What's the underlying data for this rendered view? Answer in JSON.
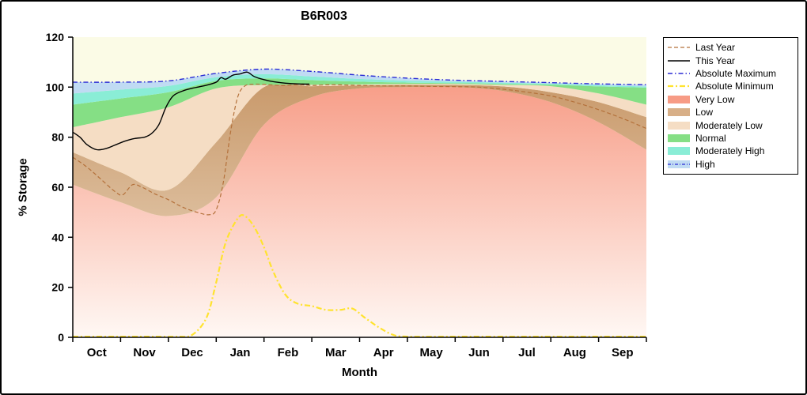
{
  "chart_data": {
    "type": "area",
    "title": "B6R003",
    "xlabel": "Month",
    "ylabel": "% Storage",
    "ylim": [
      0,
      120
    ],
    "y_ticks": [
      0,
      20,
      40,
      60,
      80,
      100,
      120
    ],
    "x_tick_labels": [
      "Oct",
      "Nov",
      "Dec",
      "Jan",
      "Feb",
      "Mar",
      "Apr",
      "May",
      "Jun",
      "Jul",
      "Aug",
      "Sep"
    ],
    "plot_bg": "#FBFBE6",
    "band_x": [
      0,
      1,
      2,
      3,
      4,
      5,
      6,
      7,
      8,
      9,
      10,
      11,
      12
    ],
    "bands": [
      {
        "name": "Very Low",
        "color": "#F79B85",
        "gradient_to": "#FFF8F4",
        "top": [
          61,
          54,
          48.5,
          56,
          85,
          96,
          99.5,
          100,
          100,
          98.5,
          94,
          86,
          75
        ]
      },
      {
        "name": "Low",
        "color": "#C89869",
        "gradient_to": "#EDDCC6",
        "top": [
          74,
          66,
          59,
          78,
          100,
          100.4,
          100.7,
          100.9,
          100.9,
          100.3,
          98,
          94,
          88
        ]
      },
      {
        "name": "Moderately Low",
        "color": "#F5DDC4",
        "top": [
          84,
          88,
          92,
          99.5,
          100.9,
          101,
          101.1,
          101.3,
          101.3,
          100.9,
          100.4,
          97.5,
          93
        ]
      },
      {
        "name": "Normal",
        "color": "#85DF85",
        "top": [
          93,
          95.5,
          98,
          102.5,
          103.5,
          102.8,
          102.2,
          101.8,
          101.6,
          101.3,
          101,
          100.3,
          99.8
        ]
      },
      {
        "name": "Moderately High",
        "color": "#8AEDD6",
        "top": [
          97.5,
          99,
          100.5,
          104,
          105.2,
          104.3,
          103.3,
          102.6,
          102.2,
          101.8,
          101.4,
          100.8,
          100.3
        ]
      },
      {
        "name": "High",
        "color": "#C0DBF3",
        "top": [
          102,
          102,
          102.5,
          105.5,
          107.2,
          106.3,
          104.8,
          103.6,
          102.8,
          102.3,
          101.8,
          101.3,
          101
        ]
      }
    ],
    "lines": [
      {
        "name": "Last Year",
        "color": "#B4713B",
        "dash": "5 3",
        "width": 1.2,
        "points": [
          [
            0,
            72
          ],
          [
            0.3,
            68
          ],
          [
            0.6,
            63
          ],
          [
            0.9,
            58
          ],
          [
            1.05,
            57
          ],
          [
            1.25,
            61
          ],
          [
            1.45,
            60
          ],
          [
            1.7,
            57.5
          ],
          [
            2,
            55
          ],
          [
            2.3,
            52
          ],
          [
            2.6,
            50
          ],
          [
            2.85,
            49
          ],
          [
            3,
            51
          ],
          [
            3.15,
            62
          ],
          [
            3.3,
            82
          ],
          [
            3.45,
            96
          ],
          [
            3.6,
            100.5
          ],
          [
            3.8,
            101.2
          ],
          [
            4.1,
            101
          ],
          [
            4.4,
            100.6
          ],
          [
            4.7,
            101.1
          ],
          [
            5,
            100.7
          ],
          [
            5.4,
            101
          ],
          [
            5.8,
            100.8
          ],
          [
            6.2,
            100.6
          ],
          [
            6.6,
            100.5
          ],
          [
            7,
            100.5
          ],
          [
            7.5,
            100.3
          ],
          [
            8,
            100.2
          ],
          [
            8.5,
            100
          ],
          [
            9,
            99.2
          ],
          [
            9.5,
            98
          ],
          [
            10,
            96.5
          ],
          [
            10.5,
            94
          ],
          [
            11,
            91
          ],
          [
            11.5,
            87.5
          ],
          [
            12,
            83.5
          ]
        ]
      },
      {
        "name": "Absolute Maximum",
        "color": "#2A2AD4",
        "dash": "6 3 1.5 3",
        "width": 1.4,
        "points": [
          [
            0,
            102
          ],
          [
            1,
            102
          ],
          [
            2,
            102.5
          ],
          [
            3,
            105.5
          ],
          [
            4,
            107.2
          ],
          [
            5,
            106.3
          ],
          [
            6,
            104.8
          ],
          [
            7,
            103.6
          ],
          [
            8,
            102.8
          ],
          [
            9,
            102.3
          ],
          [
            10,
            101.8
          ],
          [
            11,
            101.3
          ],
          [
            12,
            101
          ]
        ]
      },
      {
        "name": "Absolute Minimum",
        "color": "#FFE32E",
        "dash": "7 3 2 3",
        "width": 2.2,
        "points": [
          [
            0,
            0.3
          ],
          [
            0.8,
            0.3
          ],
          [
            1.6,
            0.3
          ],
          [
            2.2,
            0.3
          ],
          [
            2.5,
            1
          ],
          [
            2.8,
            8
          ],
          [
            3,
            22
          ],
          [
            3.2,
            38
          ],
          [
            3.45,
            47.5
          ],
          [
            3.6,
            48.5
          ],
          [
            3.8,
            44
          ],
          [
            4,
            36
          ],
          [
            4.2,
            26
          ],
          [
            4.45,
            17
          ],
          [
            4.7,
            13.5
          ],
          [
            5,
            12.5
          ],
          [
            5.3,
            11
          ],
          [
            5.6,
            11
          ],
          [
            5.85,
            11.5
          ],
          [
            6.1,
            8
          ],
          [
            6.4,
            4
          ],
          [
            6.7,
            1
          ],
          [
            7,
            0.3
          ],
          [
            8,
            0.3
          ],
          [
            9,
            0.3
          ],
          [
            10,
            0.3
          ],
          [
            11,
            0.3
          ],
          [
            12,
            0.3
          ]
        ]
      },
      {
        "name": "This Year",
        "color": "#000000",
        "dash": "",
        "width": 1.4,
        "points": [
          [
            0,
            82
          ],
          [
            0.15,
            80
          ],
          [
            0.3,
            77
          ],
          [
            0.5,
            75
          ],
          [
            0.7,
            75.5
          ],
          [
            0.9,
            77
          ],
          [
            1.1,
            78.5
          ],
          [
            1.3,
            79.5
          ],
          [
            1.5,
            80
          ],
          [
            1.65,
            81.5
          ],
          [
            1.8,
            85
          ],
          [
            1.95,
            92
          ],
          [
            2.1,
            96.5
          ],
          [
            2.3,
            98.5
          ],
          [
            2.55,
            99.8
          ],
          [
            2.8,
            100.8
          ],
          [
            3,
            102
          ],
          [
            3.1,
            103.8
          ],
          [
            3.2,
            103.2
          ],
          [
            3.35,
            104.8
          ],
          [
            3.5,
            105.3
          ],
          [
            3.65,
            106
          ],
          [
            3.8,
            104.2
          ],
          [
            4,
            103
          ],
          [
            4.2,
            102.2
          ],
          [
            4.45,
            101.6
          ],
          [
            4.7,
            101.3
          ],
          [
            4.95,
            101.2
          ]
        ]
      }
    ],
    "legend": {
      "items": [
        {
          "label": "Last Year",
          "kind": "line",
          "color": "#B4713B",
          "dash": "5 3",
          "width": 1.2
        },
        {
          "label": "This Year",
          "kind": "line",
          "color": "#000000",
          "dash": "",
          "width": 1.4
        },
        {
          "label": "Absolute Maximum",
          "kind": "line",
          "color": "#2A2AD4",
          "dash": "6 3 1.5 3",
          "width": 1.4
        },
        {
          "label": "Absolute Minimum",
          "kind": "line",
          "color": "#FFE32E",
          "dash": "7 3 2 3",
          "width": 2.2
        },
        {
          "label": "Very Low",
          "kind": "fill",
          "color": "#F79B85"
        },
        {
          "label": "Low",
          "kind": "fill",
          "color": "#D8AF87"
        },
        {
          "label": "Moderately Low",
          "kind": "fill",
          "color": "#F5DDC4"
        },
        {
          "label": "Normal",
          "kind": "fill",
          "color": "#85DF85"
        },
        {
          "label": "Moderately High",
          "kind": "fill",
          "color": "#8AEDD6"
        },
        {
          "label": "High",
          "kind": "fill-line",
          "color": "#C0DBF3",
          "line_color": "#2A2AD4",
          "dash": "4 2 1 2",
          "width": 1.2
        }
      ]
    }
  }
}
